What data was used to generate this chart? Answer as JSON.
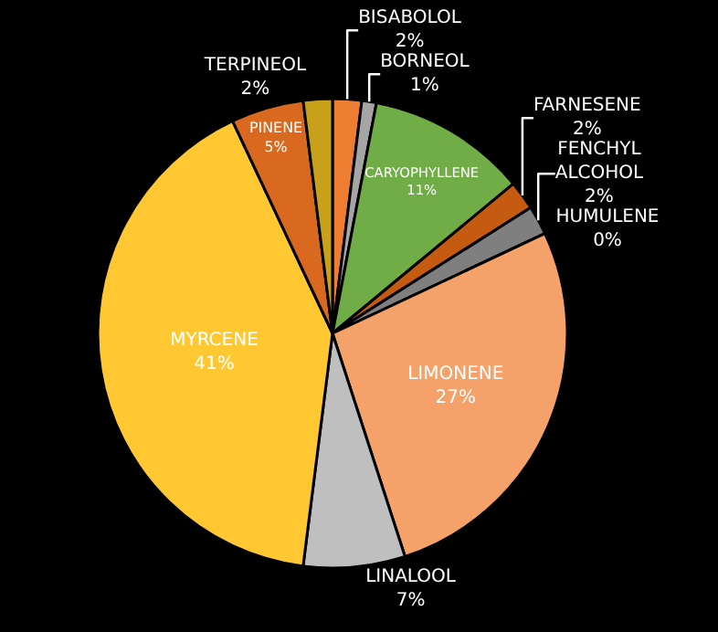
{
  "chart_data": {
    "type": "pie",
    "categories": [
      "BISABOLOL",
      "BORNEOL",
      "CARYOPHYLLENE",
      "FARNESENE",
      "FENCHYL ALCOHOL",
      "HUMULENE",
      "LIMONENE",
      "LINALOOL",
      "MYRCENE",
      "PINENE",
      "TERPINEOL"
    ],
    "values": [
      2,
      1,
      11,
      2,
      2,
      0,
      27,
      7,
      41,
      5,
      2
    ],
    "colors": [
      "#ed7d31",
      "#a5a5a5",
      "#70ad47",
      "#c55a11",
      "#7f7f7f",
      "#5b9bd5",
      "#f4a26a",
      "#bfbfbf",
      "#ffc832",
      "#d9691f",
      "#c9a01a"
    ],
    "value_labels": [
      "2%",
      "1%",
      "11%",
      "2%",
      "2%",
      "0%",
      "27%",
      "7%",
      "41%",
      "5%",
      "2%"
    ],
    "legend": false
  }
}
